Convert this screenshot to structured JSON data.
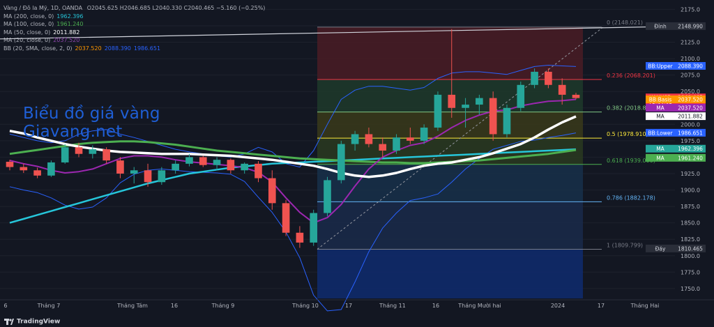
{
  "header": {
    "symbol_line": "Vàng / Đô la Mỹ, 1D, OANDA",
    "ohlc": "O2045.625 H2046.685 L2040.330 C2040.465 −5.160 (−0.25%)",
    "indicators": [
      {
        "label": "MA (200, close, 0)",
        "values": [
          "1962.396"
        ],
        "colors": [
          "#26c6da"
        ]
      },
      {
        "label": "MA (100, close, 0)",
        "values": [
          "1961.240"
        ],
        "colors": [
          "#4caf50"
        ]
      },
      {
        "label": "MA (50, close, 0)",
        "values": [
          "2011.882"
        ],
        "colors": [
          "#ffffff"
        ]
      },
      {
        "label": "MA (20, close, 0)",
        "values": [
          "2037.520"
        ],
        "colors": [
          "#8e44ad"
        ]
      },
      {
        "label": "BB (20, SMA, close, 2, 0)",
        "values": [
          "2037.520",
          "2088.390",
          "1986.651"
        ],
        "colors": [
          "#ff9800",
          "#2962ff",
          "#2962ff"
        ]
      }
    ]
  },
  "watermark": {
    "line1": "Biểu đồ giá vàng",
    "line2": "Giavang.net"
  },
  "footer": {
    "brand": "TradingView"
  },
  "colors": {
    "up": "#26a69a",
    "down": "#ef5350",
    "bb": "#2962ff",
    "ma20": "#9c27b0",
    "ma50": "#ffffff",
    "ma100": "#4caf50",
    "ma200": "#26c6da",
    "bg": "#131722"
  },
  "chart_data": {
    "type": "candlestick",
    "y_axis": {
      "ylim": [
        1735,
        2185
      ],
      "ticks": [
        1750,
        1775,
        1800,
        1825,
        1850,
        1875,
        1900,
        1925,
        1950,
        1975,
        2000,
        2025,
        2050,
        2075,
        2100,
        2125,
        2150,
        2175
      ]
    },
    "x_axis": {
      "labels": [
        "6",
        "Tháng 7",
        "Tháng Tám",
        "16",
        "Tháng 9",
        "Tháng 10",
        "17",
        "Tháng 11",
        "16",
        "Tháng Mười hai",
        "2024",
        "17",
        "Tháng Hai"
      ]
    },
    "fibonacci": {
      "levels": [
        {
          "label": "0 (2148.021)",
          "value": 2148.021,
          "color": "#787b86"
        },
        {
          "label": "0.236 (2068.201)",
          "value": 2068.201,
          "color": "#f23645"
        },
        {
          "label": "0.382 (2018.820)",
          "value": 2018.82,
          "color": "#81c784"
        },
        {
          "label": "0.5 (1978.910)",
          "value": 1978.91,
          "color": "#ffeb3b"
        },
        {
          "label": "0.618 (1939.000)",
          "value": 1939.0,
          "color": "#4caf50"
        },
        {
          "label": "0.786 (1882.178)",
          "value": 1882.178,
          "color": "#64b5f6"
        },
        {
          "label": "1 (1809.799)",
          "value": 1809.799,
          "color": "#787b86"
        }
      ]
    },
    "price_tags": [
      {
        "label": "Đỉnh",
        "value": "2148.990",
        "color": "#d1d4dc",
        "bg": "#2a2e39"
      },
      {
        "label": "BB:Upper",
        "value": "2088.390",
        "color": "#ffffff",
        "bg": "#2962ff"
      },
      {
        "label": "XAUUSD",
        "value": "2040.465",
        "sub": "18:52:58",
        "color": "#ffffff",
        "bg": "#f23645"
      },
      {
        "label": "BB:Basis",
        "value": "2037.520",
        "color": "#ffffff",
        "bg": "#ff9800"
      },
      {
        "label": "MA",
        "value": "2037.520",
        "color": "#ffffff",
        "bg": "#9c27b0"
      },
      {
        "label": "MA",
        "value": "2011.882",
        "color": "#131722",
        "bg": "#ffffff"
      },
      {
        "label": "BB:Lower",
        "value": "1986.651",
        "color": "#ffffff",
        "bg": "#2962ff"
      },
      {
        "label": "MA",
        "value": "1962.396",
        "color": "#ffffff",
        "bg": "#26a69a"
      },
      {
        "label": "MA",
        "value": "1961.240",
        "color": "#ffffff",
        "bg": "#4caf50"
      },
      {
        "label": "Đáy",
        "value": "1810.465",
        "color": "#d1d4dc",
        "bg": "#2a2e39"
      }
    ],
    "ma200": [
      1850,
      1856,
      1862,
      1868,
      1874,
      1880,
      1886,
      1892,
      1898,
      1904,
      1910,
      1915,
      1920,
      1925,
      1928,
      1931,
      1934,
      1936,
      1938,
      1940,
      1941,
      1942,
      1943,
      1944,
      1945,
      1946,
      1947,
      1948,
      1949,
      1950,
      1951,
      1952,
      1953,
      1954,
      1955,
      1956,
      1957,
      1958,
      1959,
      1960,
      1961,
      1962
    ],
    "ma100": [
      1955,
      1958,
      1961,
      1964,
      1967,
      1970,
      1972,
      1973,
      1974,
      1974,
      1973,
      1971,
      1969,
      1966,
      1963,
      1960,
      1958,
      1956,
      1954,
      1952,
      1950,
      1948,
      1947,
      1946,
      1945,
      1944,
      1943,
      1942,
      1942,
      1941,
      1941,
      1942,
      1943,
      1944,
      1945,
      1947,
      1949,
      1951,
      1953,
      1955,
      1958,
      1961
    ],
    "ma50": [
      1990,
      1986,
      1980,
      1975,
      1970,
      1966,
      1963,
      1960,
      1958,
      1957,
      1956,
      1955,
      1955,
      1955,
      1954,
      1953,
      1952,
      1950,
      1948,
      1946,
      1943,
      1940,
      1937,
      1932,
      1926,
      1922,
      1920,
      1922,
      1926,
      1932,
      1937,
      1940,
      1942,
      1946,
      1950,
      1956,
      1963,
      1970,
      1980,
      1992,
      2003,
      2012
    ],
    "ma20": [
      1945,
      1940,
      1936,
      1930,
      1926,
      1928,
      1932,
      1940,
      1948,
      1952,
      1952,
      1950,
      1946,
      1943,
      1941,
      1939,
      1937,
      1934,
      1927,
      1912,
      1888,
      1866,
      1850,
      1858,
      1878,
      1906,
      1932,
      1950,
      1960,
      1968,
      1972,
      1982,
      1995,
      2006,
      2014,
      2020,
      2022,
      2028,
      2032,
      2035,
      2036,
      2038
    ],
    "bb_upper": [
      1985,
      1980,
      1975,
      1972,
      1975,
      1985,
      1990,
      1992,
      1985,
      1980,
      1974,
      1968,
      1962,
      1958,
      1955,
      1952,
      1950,
      1955,
      1965,
      1958,
      1940,
      1935,
      1960,
      2000,
      2038,
      2052,
      2058,
      2058,
      2055,
      2052,
      2056,
      2070,
      2078,
      2080,
      2080,
      2078,
      2076,
      2082,
      2088,
      2090,
      2089,
      2088
    ],
    "bb_lower": [
      1905,
      1900,
      1896,
      1888,
      1877,
      1871,
      1874,
      1888,
      1911,
      1924,
      1930,
      1932,
      1930,
      1928,
      1927,
      1926,
      1924,
      1913,
      1889,
      1866,
      1836,
      1797,
      1740,
      1716,
      1718,
      1760,
      1806,
      1842,
      1865,
      1884,
      1888,
      1894,
      1912,
      1932,
      1948,
      1962,
      1968,
      1974,
      1976,
      1980,
      1983,
      1987
    ],
    "candles_ohlc": [
      [
        1943,
        1946,
        1930,
        1935
      ],
      [
        1935,
        1940,
        1926,
        1930
      ],
      [
        1930,
        1934,
        1918,
        1922
      ],
      [
        1922,
        1945,
        1920,
        1942
      ],
      [
        1942,
        1970,
        1940,
        1965
      ],
      [
        1965,
        1972,
        1950,
        1955
      ],
      [
        1955,
        1968,
        1948,
        1962
      ],
      [
        1962,
        1965,
        1940,
        1945
      ],
      [
        1945,
        1950,
        1918,
        1925
      ],
      [
        1925,
        1935,
        1910,
        1930
      ],
      [
        1930,
        1940,
        1905,
        1912
      ],
      [
        1912,
        1935,
        1908,
        1930
      ],
      [
        1930,
        1945,
        1925,
        1940
      ],
      [
        1940,
        1955,
        1936,
        1950
      ],
      [
        1950,
        1952,
        1935,
        1938
      ],
      [
        1938,
        1950,
        1930,
        1946
      ],
      [
        1946,
        1948,
        1925,
        1930
      ],
      [
        1930,
        1942,
        1925,
        1940
      ],
      [
        1940,
        1944,
        1912,
        1918
      ],
      [
        1918,
        1930,
        1870,
        1880
      ],
      [
        1880,
        1885,
        1830,
        1835
      ],
      [
        1835,
        1845,
        1812,
        1820
      ],
      [
        1820,
        1870,
        1815,
        1865
      ],
      [
        1865,
        1920,
        1860,
        1915
      ],
      [
        1915,
        1975,
        1910,
        1970
      ],
      [
        1970,
        1990,
        1960,
        1985
      ],
      [
        1985,
        1995,
        1965,
        1970
      ],
      [
        1970,
        1980,
        1950,
        1960
      ],
      [
        1960,
        1985,
        1955,
        1980
      ],
      [
        1980,
        1995,
        1970,
        1975
      ],
      [
        1975,
        2000,
        1970,
        1995
      ],
      [
        1995,
        2050,
        1990,
        2045
      ],
      [
        2045,
        2145,
        2010,
        2025
      ],
      [
        2025,
        2040,
        1995,
        2030
      ],
      [
        2030,
        2045,
        2015,
        2040
      ],
      [
        2040,
        2050,
        1975,
        1985
      ],
      [
        1985,
        2030,
        1980,
        2025
      ],
      [
        2025,
        2065,
        2020,
        2060
      ],
      [
        2060,
        2085,
        2055,
        2080
      ],
      [
        2080,
        2085,
        2055,
        2060
      ],
      [
        2060,
        2070,
        2030,
        2045
      ],
      [
        2045,
        2048,
        2038,
        2040
      ]
    ]
  }
}
